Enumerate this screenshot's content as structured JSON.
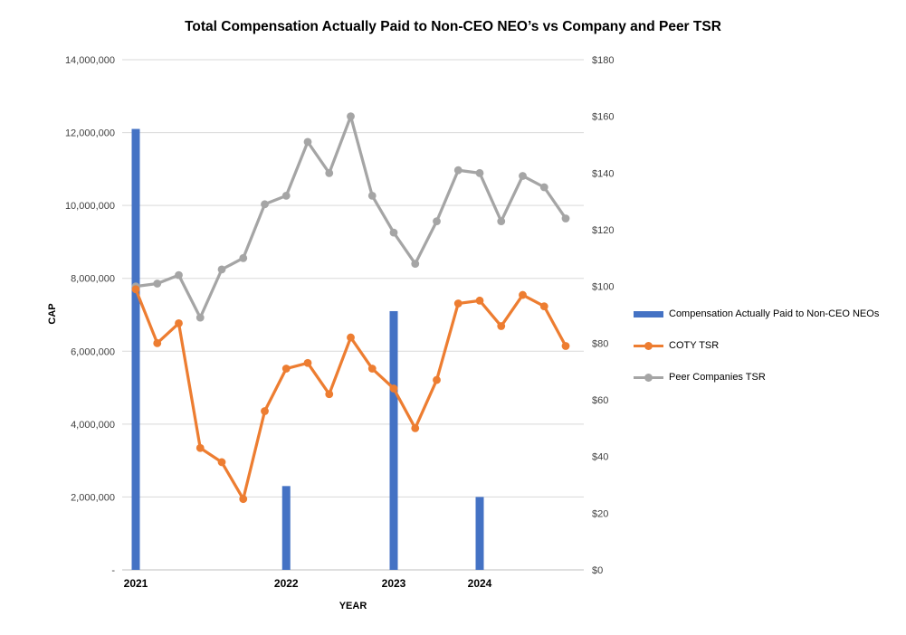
{
  "chart_data": {
    "type": "combo-bar-line",
    "title": "Total Compensation Actually Paid to Non-CEO NEO’s vs Company and Peer TSR",
    "x_axis_title": "YEAR",
    "grid": "horizontal",
    "legend_position": "right",
    "y_left": {
      "title": "CAP",
      "max": 14000000,
      "min": 0,
      "ticks": [
        "14,000,000",
        "12,000,000",
        "10,000,000",
        "8,000,000",
        "6,000,000",
        "4,000,000",
        "2,000,000",
        "-"
      ]
    },
    "y_right": {
      "max": 180,
      "min": 0,
      "ticks": [
        "$180",
        "$160",
        "$140",
        "$120",
        "$100",
        "$80",
        "$60",
        "$40",
        "$20",
        "$0"
      ]
    },
    "year_labels": [
      "2021",
      "2022",
      "2023",
      "2024"
    ],
    "year_tick_indices": [
      0,
      7,
      12,
      16
    ],
    "bar_series": {
      "name": "Compensation Actually Paid to Non-CEO NEOs",
      "color": "#4472C4",
      "axis": "left",
      "indices": [
        0,
        7,
        12,
        16
      ],
      "values": [
        12100000,
        2300000,
        7100000,
        2000000
      ]
    },
    "line_series": [
      {
        "name": "COTY TSR",
        "color": "#ED7D31",
        "axis": "right",
        "values": [
          99,
          80,
          87,
          43,
          38,
          25,
          56,
          71,
          73,
          62,
          82,
          71,
          64,
          50,
          67,
          94,
          95,
          86,
          97,
          93,
          79
        ]
      },
      {
        "name": "Peer Companies TSR",
        "color": "#A5A5A5",
        "axis": "right",
        "values": [
          100,
          101,
          104,
          89,
          106,
          110,
          129,
          132,
          151,
          140,
          160,
          132,
          119,
          108,
          123,
          141,
          140,
          123,
          139,
          135,
          124
        ]
      }
    ],
    "colors": {
      "gridline": "#D9D9D9",
      "axis_line": "#BFBFBF",
      "tick_text": "#404040"
    }
  }
}
